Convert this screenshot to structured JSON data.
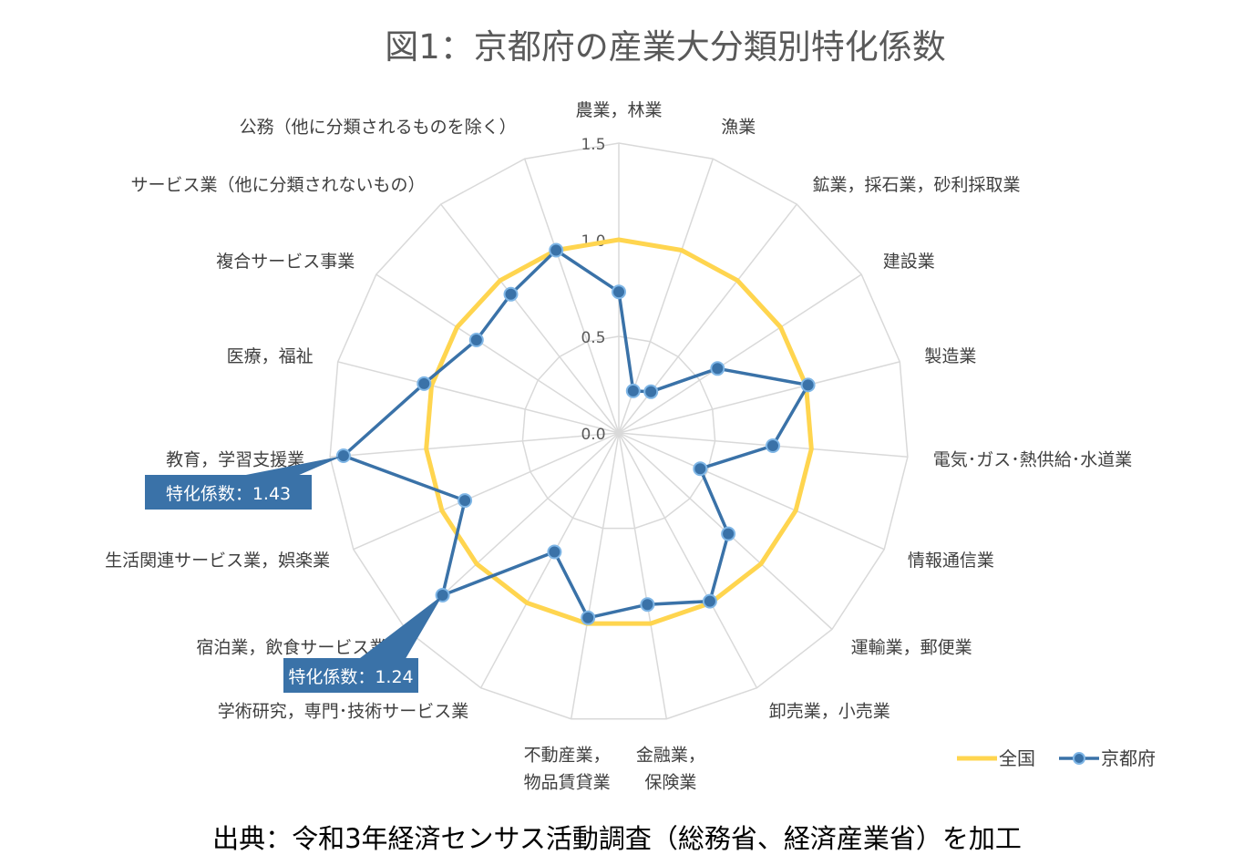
{
  "chart_data": {
    "type": "radar",
    "title": "図1：京都府の産業大分類別特化係数",
    "categories": [
      "農業，林業",
      "漁業",
      "鉱業，採石業，砂利採取業",
      "建設業",
      "製造業",
      "電気･ガス･熱供給･水道業",
      "情報通信業",
      "運輸業，郵便業",
      "卸売業，小売業",
      "金融業，保険業",
      "不動産業，物品賃貸業",
      "学術研究，専門･技術サービス業",
      "宿泊業，飲食サービス業",
      "生活関連サービス業，娯楽業",
      "教育，学習支援業",
      "医療，福祉",
      "複合サービス事業",
      "サービス業（他に分類されないもの）",
      "公務（他に分類されるものを除く）"
    ],
    "category_lines": [
      [
        "農業，林業"
      ],
      [
        "漁業"
      ],
      [
        "鉱業，採石業，砂利採取業"
      ],
      [
        "建設業"
      ],
      [
        "製造業"
      ],
      [
        "電気･ガス･熱供給･水道業"
      ],
      [
        "情報通信業"
      ],
      [
        "運輸業，郵便業"
      ],
      [
        "卸売業，小売業"
      ],
      [
        "金融業，",
        "保険業"
      ],
      [
        "不動産業，",
        "物品賃貸業"
      ],
      [
        "学術研究，専門･技術サービス業"
      ],
      [
        "宿泊業，飲食サービス業"
      ],
      [
        "生活関連サービス業，娯楽業"
      ],
      [
        "教育，学習支援業"
      ],
      [
        "医療，福祉"
      ],
      [
        "複合サービス事業"
      ],
      [
        "サービス業（他に分類されないもの）"
      ],
      [
        "公務（他に分類されるものを除く）"
      ]
    ],
    "series": [
      {
        "name": "全国",
        "color": "#FFD54F",
        "values": [
          1,
          1,
          1,
          1,
          1,
          1,
          1,
          1,
          1,
          1,
          1,
          1,
          1,
          1,
          1,
          1,
          1,
          1,
          1
        ]
      },
      {
        "name": "京都府",
        "color": "#3A72A8",
        "values": [
          0.73,
          0.23,
          0.27,
          0.61,
          1.01,
          0.8,
          0.46,
          0.77,
          0.99,
          0.9,
          0.97,
          0.7,
          1.24,
          0.87,
          1.43,
          1.04,
          0.88,
          0.91,
          1.0
        ]
      }
    ],
    "rlim": [
      0,
      1.5
    ],
    "rticks": [
      "0.0",
      "0.5",
      "1.0",
      "1.5"
    ],
    "legend_position": "bottom-right",
    "grid": true,
    "callouts": [
      {
        "index": 14,
        "text": "特化係数：1.43"
      },
      {
        "index": 12,
        "text": "特化係数：1.24"
      }
    ]
  },
  "source_note": "出典：令和3年経済センサス活動調査（総務省、経済産業省）を加工"
}
